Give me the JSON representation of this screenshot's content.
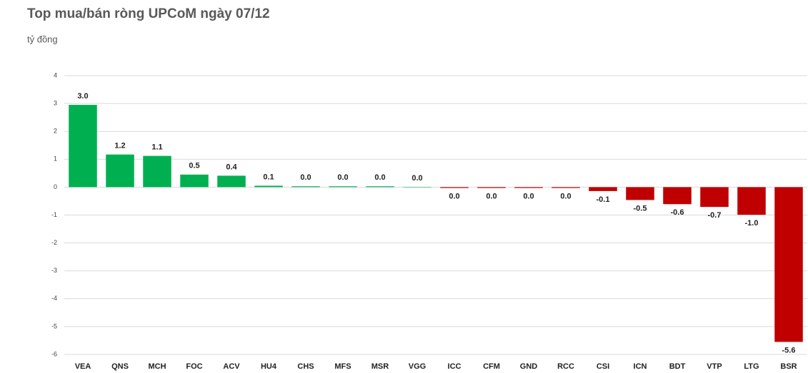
{
  "chart_data": {
    "type": "bar",
    "title": "Top mua/bán ròng UPCoM ngày 07/12",
    "subtitle": "tỷ đồng",
    "categories": [
      "VEA",
      "QNS",
      "MCH",
      "FOC",
      "ACV",
      "HU4",
      "CHS",
      "MFS",
      "MSR",
      "VGG",
      "ICC",
      "CFM",
      "GND",
      "RCC",
      "CSI",
      "ICN",
      "BDT",
      "VTP",
      "LTG",
      "BSR"
    ],
    "values": [
      2.95,
      1.17,
      1.12,
      0.45,
      0.41,
      0.05,
      0.03,
      0.03,
      0.03,
      0.004,
      -0.03,
      -0.03,
      -0.03,
      -0.03,
      -0.14,
      -0.46,
      -0.61,
      -0.71,
      -0.99,
      -5.55
    ],
    "value_labels": [
      "3.0",
      "1.2",
      "1.1",
      "0.5",
      "0.4",
      "0.1",
      "0.0",
      "0.0",
      "0.0",
      "0.0",
      "0.0",
      "0.0",
      "0.0",
      "0.0",
      "-0.1",
      "-0.5",
      "-0.6",
      "-0.7",
      "-1.0",
      "-5.6"
    ],
    "positive_color": "#00b050",
    "negative_color": "#c00000",
    "ylim": [
      -6,
      4
    ],
    "yticks": [
      -6,
      -5,
      -4,
      -3,
      -2,
      -1,
      0,
      1,
      2,
      3,
      4
    ],
    "grid": true
  }
}
